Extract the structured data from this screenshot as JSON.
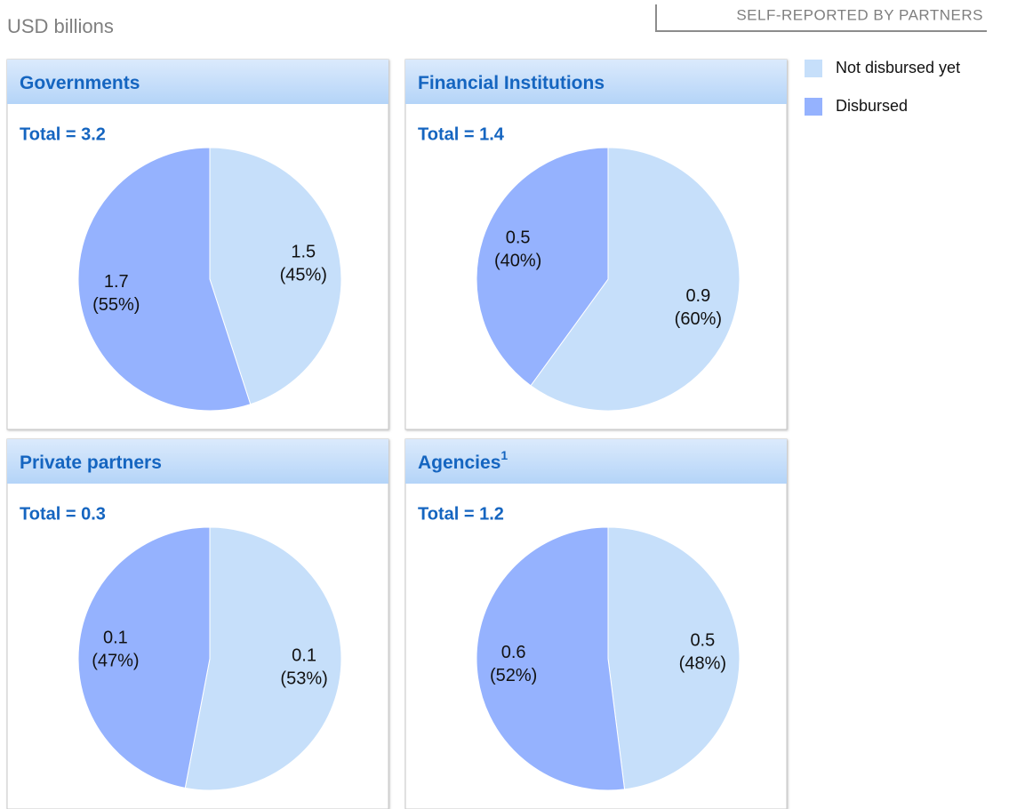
{
  "unit_label": "USD billions",
  "source_note": "SELF-REPORTED BY PARTNERS",
  "chart_data": [
    {
      "type": "pie",
      "title": "Governments",
      "total_label": "Total = 3.2",
      "categories": [
        "Not disbursed yet",
        "Disbursed"
      ],
      "colors": [
        "#c6dffa",
        "#95b2fe"
      ],
      "values": [
        45,
        55
      ],
      "value_labels": [
        "(45%)",
        "(55%)"
      ],
      "amounts": [
        1.5,
        1.7
      ]
    },
    {
      "type": "pie",
      "title": "Financial Institutions",
      "total_label": "Total = 1.4",
      "categories": [
        "Not disbursed yet",
        "Disbursed"
      ],
      "colors": [
        "#c6dffa",
        "#95b2fe"
      ],
      "values": [
        60,
        40
      ],
      "value_labels": [
        "(60%)",
        "(40%)"
      ],
      "amounts": [
        0.9,
        0.5
      ]
    },
    {
      "type": "pie",
      "title": "Private partners",
      "total_label": "Total = 0.3",
      "categories": [
        "Not disbursed yet",
        "Disbursed"
      ],
      "colors": [
        "#c6dffa",
        "#95b2fe"
      ],
      "values": [
        53,
        47
      ],
      "value_labels": [
        "(53%)",
        "(47%)"
      ],
      "amounts": [
        0.1,
        0.1
      ]
    },
    {
      "type": "pie",
      "title": "Agencies",
      "title_note": "1",
      "total_label": "Total = 1.2",
      "categories": [
        "Not disbursed yet",
        "Disbursed"
      ],
      "colors": [
        "#c6dffa",
        "#95b2fe"
      ],
      "values": [
        48,
        52
      ],
      "value_labels": [
        "(48%)",
        "(52%)"
      ],
      "amounts": [
        0.5,
        0.6
      ]
    }
  ]
}
